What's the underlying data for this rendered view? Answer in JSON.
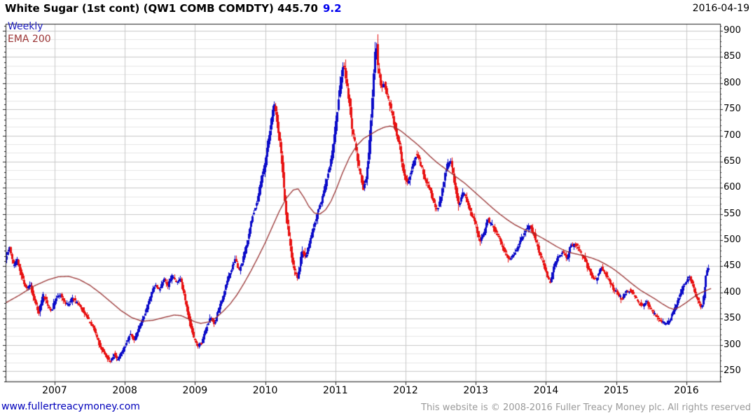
{
  "header": {
    "title_main": "White Sugar (1st cont) (QW1 COMB COMDTY) 445.70",
    "title_change": "9.2",
    "date": "2016-04-19"
  },
  "legend": {
    "timeframe": "Weekly",
    "overlay": "EMA 200"
  },
  "footer": {
    "link": "www.fullertreacymoney.com",
    "copyright": "This website is © 2008-2016 Fuller Treacy Money plc. All rights reserved"
  },
  "colors": {
    "up_candle": "#0a0ac8",
    "down_candle": "#e81010",
    "ema_line": "#993333",
    "grid_major": "#c9c9c9",
    "grid_minor": "#e6e6e6",
    "spine": "#222222",
    "change_text": "#0000ee",
    "link_text": "#0000bb",
    "copyright_text": "#9a9a9a",
    "legend_weekly": "#2222c2",
    "legend_ema": "#9b3434"
  },
  "chart_data": {
    "type": "candlestick",
    "title": "White Sugar (1st cont) (QW1 COMB COMDTY)",
    "last_price": 445.7,
    "change": 9.2,
    "timeframe": "Weekly",
    "overlay": "EMA 200",
    "x_ticks": [
      2007,
      2008,
      2009,
      2010,
      2011,
      2012,
      2013,
      2014,
      2015,
      2016
    ],
    "y_ticks": [
      250,
      300,
      350,
      400,
      450,
      500,
      550,
      600,
      650,
      700,
      750,
      800,
      850,
      900
    ],
    "x_range": [
      2006.302,
      2016.48
    ],
    "y_range": [
      230,
      913.4
    ],
    "grid_minor_step": 16.667,
    "axis_minor_tick_step": 10,
    "bar_interval_years": 0.01916,
    "price_keypoints": [
      [
        2006.3,
        465
      ],
      [
        2006.36,
        485
      ],
      [
        2006.42,
        452
      ],
      [
        2006.48,
        462
      ],
      [
        2006.54,
        430
      ],
      [
        2006.6,
        405
      ],
      [
        2006.66,
        415
      ],
      [
        2006.72,
        385
      ],
      [
        2006.78,
        362
      ],
      [
        2006.84,
        395
      ],
      [
        2006.9,
        378
      ],
      [
        2006.96,
        365
      ],
      [
        2007.02,
        388
      ],
      [
        2007.08,
        398
      ],
      [
        2007.14,
        382
      ],
      [
        2007.2,
        375
      ],
      [
        2007.26,
        390
      ],
      [
        2007.32,
        380
      ],
      [
        2007.4,
        368
      ],
      [
        2007.48,
        348
      ],
      [
        2007.56,
        332
      ],
      [
        2007.62,
        308
      ],
      [
        2007.68,
        292
      ],
      [
        2007.74,
        278
      ],
      [
        2007.8,
        268
      ],
      [
        2007.85,
        284
      ],
      [
        2007.9,
        271
      ],
      [
        2007.96,
        286
      ],
      [
        2008.02,
        302
      ],
      [
        2008.08,
        322
      ],
      [
        2008.14,
        310
      ],
      [
        2008.2,
        330
      ],
      [
        2008.28,
        355
      ],
      [
        2008.36,
        390
      ],
      [
        2008.44,
        415
      ],
      [
        2008.5,
        405
      ],
      [
        2008.56,
        428
      ],
      [
        2008.62,
        412
      ],
      [
        2008.68,
        432
      ],
      [
        2008.74,
        420
      ],
      [
        2008.8,
        425
      ],
      [
        2008.86,
        390
      ],
      [
        2008.92,
        350
      ],
      [
        2008.98,
        315
      ],
      [
        2009.04,
        298
      ],
      [
        2009.1,
        305
      ],
      [
        2009.16,
        330
      ],
      [
        2009.22,
        352
      ],
      [
        2009.28,
        340
      ],
      [
        2009.34,
        365
      ],
      [
        2009.4,
        390
      ],
      [
        2009.46,
        420
      ],
      [
        2009.52,
        445
      ],
      [
        2009.58,
        462
      ],
      [
        2009.64,
        440
      ],
      [
        2009.7,
        470
      ],
      [
        2009.76,
        505
      ],
      [
        2009.82,
        545
      ],
      [
        2009.88,
        570
      ],
      [
        2009.94,
        610
      ],
      [
        2010.0,
        645
      ],
      [
        2010.06,
        695
      ],
      [
        2010.1,
        735
      ],
      [
        2010.14,
        762
      ],
      [
        2010.18,
        720
      ],
      [
        2010.22,
        680
      ],
      [
        2010.26,
        610
      ],
      [
        2010.3,
        560
      ],
      [
        2010.34,
        510
      ],
      [
        2010.38,
        470
      ],
      [
        2010.42,
        440
      ],
      [
        2010.46,
        428
      ],
      [
        2010.5,
        452
      ],
      [
        2010.54,
        482
      ],
      [
        2010.58,
        465
      ],
      [
        2010.64,
        500
      ],
      [
        2010.7,
        530
      ],
      [
        2010.76,
        555
      ],
      [
        2010.82,
        580
      ],
      [
        2010.88,
        615
      ],
      [
        2010.94,
        655
      ],
      [
        2011.0,
        705
      ],
      [
        2011.04,
        755
      ],
      [
        2011.08,
        800
      ],
      [
        2011.12,
        840
      ],
      [
        2011.16,
        800
      ],
      [
        2011.2,
        762
      ],
      [
        2011.24,
        718
      ],
      [
        2011.28,
        690
      ],
      [
        2011.32,
        655
      ],
      [
        2011.36,
        625
      ],
      [
        2011.4,
        598
      ],
      [
        2011.44,
        620
      ],
      [
        2011.48,
        660
      ],
      [
        2011.52,
        745
      ],
      [
        2011.56,
        838
      ],
      [
        2011.585,
        880
      ],
      [
        2011.61,
        830
      ],
      [
        2011.66,
        788
      ],
      [
        2011.7,
        805
      ],
      [
        2011.74,
        780
      ],
      [
        2011.8,
        748
      ],
      [
        2011.86,
        712
      ],
      [
        2011.92,
        680
      ],
      [
        2011.98,
        628
      ],
      [
        2012.04,
        608
      ],
      [
        2012.1,
        642
      ],
      [
        2012.16,
        668
      ],
      [
        2012.22,
        645
      ],
      [
        2012.28,
        618
      ],
      [
        2012.34,
        600
      ],
      [
        2012.4,
        572
      ],
      [
        2012.46,
        556
      ],
      [
        2012.52,
        592
      ],
      [
        2012.58,
        638
      ],
      [
        2012.64,
        655
      ],
      [
        2012.7,
        615
      ],
      [
        2012.76,
        566
      ],
      [
        2012.82,
        590
      ],
      [
        2012.88,
        575
      ],
      [
        2012.94,
        552
      ],
      [
        2013.0,
        532
      ],
      [
        2013.06,
        498
      ],
      [
        2013.12,
        515
      ],
      [
        2013.18,
        540
      ],
      [
        2013.24,
        528
      ],
      [
        2013.3,
        512
      ],
      [
        2013.36,
        495
      ],
      [
        2013.42,
        478
      ],
      [
        2013.48,
        465
      ],
      [
        2013.54,
        472
      ],
      [
        2013.6,
        488
      ],
      [
        2013.66,
        502
      ],
      [
        2013.72,
        520
      ],
      [
        2013.78,
        528
      ],
      [
        2013.84,
        508
      ],
      [
        2013.9,
        482
      ],
      [
        2013.96,
        460
      ],
      [
        2014.02,
        432
      ],
      [
        2014.06,
        418
      ],
      [
        2014.12,
        448
      ],
      [
        2014.18,
        470
      ],
      [
        2014.24,
        478
      ],
      [
        2014.3,
        465
      ],
      [
        2014.36,
        488
      ],
      [
        2014.42,
        492
      ],
      [
        2014.48,
        480
      ],
      [
        2014.54,
        468
      ],
      [
        2014.6,
        448
      ],
      [
        2014.66,
        432
      ],
      [
        2014.72,
        425
      ],
      [
        2014.78,
        448
      ],
      [
        2014.84,
        440
      ],
      [
        2014.9,
        425
      ],
      [
        2014.96,
        408
      ],
      [
        2015.02,
        398
      ],
      [
        2015.08,
        388
      ],
      [
        2015.14,
        400
      ],
      [
        2015.2,
        405
      ],
      [
        2015.26,
        395
      ],
      [
        2015.32,
        382
      ],
      [
        2015.38,
        374
      ],
      [
        2015.44,
        382
      ],
      [
        2015.5,
        368
      ],
      [
        2015.56,
        358
      ],
      [
        2015.62,
        348
      ],
      [
        2015.68,
        342
      ],
      [
        2015.72,
        338
      ],
      [
        2015.78,
        352
      ],
      [
        2015.84,
        368
      ],
      [
        2015.9,
        390
      ],
      [
        2015.96,
        412
      ],
      [
        2016.02,
        425
      ],
      [
        2016.06,
        428
      ],
      [
        2016.1,
        412
      ],
      [
        2016.14,
        395
      ],
      [
        2016.18,
        382
      ],
      [
        2016.22,
        370
      ],
      [
        2016.26,
        402
      ],
      [
        2016.29,
        440
      ],
      [
        2016.32,
        446
      ]
    ],
    "ema_keypoints": [
      [
        2006.3,
        380
      ],
      [
        2006.5,
        395
      ],
      [
        2006.7,
        412
      ],
      [
        2006.9,
        424
      ],
      [
        2007.05,
        430
      ],
      [
        2007.2,
        431
      ],
      [
        2007.35,
        425
      ],
      [
        2007.5,
        414
      ],
      [
        2007.65,
        399
      ],
      [
        2007.8,
        382
      ],
      [
        2007.95,
        365
      ],
      [
        2008.1,
        352
      ],
      [
        2008.25,
        345
      ],
      [
        2008.4,
        347
      ],
      [
        2008.55,
        352
      ],
      [
        2008.7,
        357
      ],
      [
        2008.8,
        356
      ],
      [
        2008.9,
        350
      ],
      [
        2009.0,
        344
      ],
      [
        2009.08,
        341
      ],
      [
        2009.2,
        344
      ],
      [
        2009.3,
        352
      ],
      [
        2009.4,
        364
      ],
      [
        2009.5,
        378
      ],
      [
        2009.6,
        396
      ],
      [
        2009.7,
        418
      ],
      [
        2009.8,
        442
      ],
      [
        2009.9,
        468
      ],
      [
        2010.0,
        495
      ],
      [
        2010.1,
        525
      ],
      [
        2010.2,
        555
      ],
      [
        2010.3,
        580
      ],
      [
        2010.4,
        596
      ],
      [
        2010.47,
        598
      ],
      [
        2010.55,
        582
      ],
      [
        2010.62,
        565
      ],
      [
        2010.7,
        552
      ],
      [
        2010.78,
        550
      ],
      [
        2010.86,
        558
      ],
      [
        2010.94,
        575
      ],
      [
        2011.02,
        600
      ],
      [
        2011.1,
        628
      ],
      [
        2011.2,
        658
      ],
      [
        2011.3,
        680
      ],
      [
        2011.4,
        694
      ],
      [
        2011.5,
        702
      ],
      [
        2011.6,
        710
      ],
      [
        2011.7,
        716
      ],
      [
        2011.78,
        718
      ],
      [
        2011.86,
        715
      ],
      [
        2011.94,
        708
      ],
      [
        2012.05,
        696
      ],
      [
        2012.15,
        685
      ],
      [
        2012.25,
        673
      ],
      [
        2012.35,
        660
      ],
      [
        2012.45,
        648
      ],
      [
        2012.55,
        638
      ],
      [
        2012.65,
        628
      ],
      [
        2012.75,
        618
      ],
      [
        2012.85,
        608
      ],
      [
        2012.95,
        596
      ],
      [
        2013.05,
        584
      ],
      [
        2013.15,
        572
      ],
      [
        2013.25,
        560
      ],
      [
        2013.35,
        549
      ],
      [
        2013.45,
        539
      ],
      [
        2013.55,
        530
      ],
      [
        2013.65,
        523
      ],
      [
        2013.75,
        517
      ],
      [
        2013.85,
        511
      ],
      [
        2013.95,
        504
      ],
      [
        2014.05,
        496
      ],
      [
        2014.15,
        488
      ],
      [
        2014.25,
        481
      ],
      [
        2014.35,
        476
      ],
      [
        2014.45,
        473
      ],
      [
        2014.55,
        470
      ],
      [
        2014.65,
        466
      ],
      [
        2014.75,
        461
      ],
      [
        2014.85,
        454
      ],
      [
        2014.95,
        446
      ],
      [
        2015.05,
        436
      ],
      [
        2015.15,
        425
      ],
      [
        2015.25,
        414
      ],
      [
        2015.35,
        404
      ],
      [
        2015.45,
        396
      ],
      [
        2015.55,
        388
      ],
      [
        2015.65,
        379
      ],
      [
        2015.75,
        371
      ],
      [
        2015.82,
        368
      ],
      [
        2015.9,
        372
      ],
      [
        2016.0,
        381
      ],
      [
        2016.1,
        391
      ],
      [
        2016.2,
        399
      ],
      [
        2016.3,
        405
      ],
      [
        2016.36,
        408
      ]
    ]
  }
}
